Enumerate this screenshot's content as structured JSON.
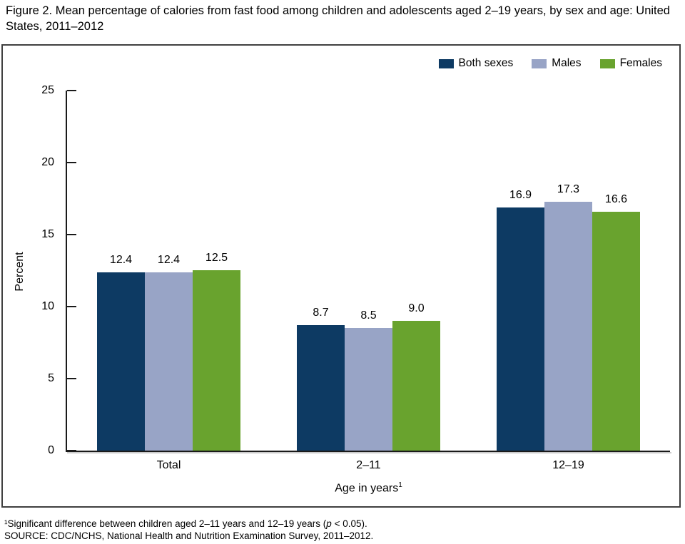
{
  "title": "Figure 2. Mean percentage of calories from fast food among children and adolescents aged 2–19 years, by sex and age: United States, 2011–2012",
  "chart_data": {
    "type": "bar",
    "categories": [
      "Total",
      "2–11",
      "12–19"
    ],
    "series": [
      {
        "name": "Both sexes",
        "color": "#0d3a63",
        "values": [
          12.4,
          8.7,
          16.9
        ]
      },
      {
        "name": "Males",
        "color": "#98a4c6",
        "values": [
          12.4,
          8.5,
          17.3
        ]
      },
      {
        "name": "Females",
        "color": "#69a32e",
        "values": [
          12.5,
          9.0,
          16.6
        ]
      }
    ],
    "title": "",
    "xlabel": "Age in years",
    "xlabel_superscript": "1",
    "ylabel": "Percent",
    "ylim": [
      0,
      25
    ],
    "yticks": [
      0,
      5,
      10,
      15,
      20,
      25
    ],
    "grid": false,
    "legend_position": "top-right",
    "value_labels": true
  },
  "colors": {
    "axis": "#1a1a1a",
    "box_border": "#404040",
    "background": "#ffffff"
  },
  "footnotes": {
    "note1_prefix": "¹Significant difference between children aged 2–11 years and 12–19 years (",
    "note1_italic": "p",
    "note1_suffix": " < 0.05).",
    "source": "SOURCE: CDC/NCHS, National Health and Nutrition Examination Survey, 2011–2012."
  }
}
